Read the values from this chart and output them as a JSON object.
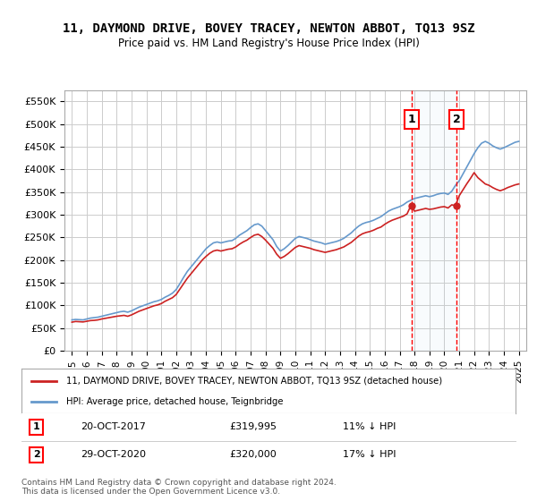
{
  "title": "11, DAYMOND DRIVE, BOVEY TRACEY, NEWTON ABBOT, TQ13 9SZ",
  "subtitle": "Price paid vs. HM Land Registry's House Price Index (HPI)",
  "yticks": [
    0,
    50000,
    100000,
    150000,
    200000,
    250000,
    300000,
    350000,
    400000,
    450000,
    500000,
    550000
  ],
  "ylim": [
    0,
    575000
  ],
  "xlim_start": 1994.5,
  "xlim_end": 2025.5,
  "background_color": "#ffffff",
  "grid_color": "#cccccc",
  "hpi_color": "#6699cc",
  "price_color": "#cc2222",
  "marker1_date": 2017.8,
  "marker1_label": "1",
  "marker1_price": 319995,
  "marker1_text": "20-OCT-2017",
  "marker1_pct": "11% ↓ HPI",
  "marker2_date": 2020.83,
  "marker2_label": "2",
  "marker2_price": 320000,
  "marker2_text": "29-OCT-2020",
  "marker2_pct": "17% ↓ HPI",
  "legend_line1": "11, DAYMOND DRIVE, BOVEY TRACEY, NEWTON ABBOT, TQ13 9SZ (detached house)",
  "legend_line2": "HPI: Average price, detached house, Teignbridge",
  "footer": "Contains HM Land Registry data © Crown copyright and database right 2024.\nThis data is licensed under the Open Government Licence v3.0.",
  "hpi_data": [
    [
      1995.0,
      68000
    ],
    [
      1995.25,
      69000
    ],
    [
      1995.5,
      68500
    ],
    [
      1995.75,
      68000
    ],
    [
      1996.0,
      70000
    ],
    [
      1996.25,
      72000
    ],
    [
      1996.5,
      73000
    ],
    [
      1996.75,
      74000
    ],
    [
      1997.0,
      76000
    ],
    [
      1997.25,
      78000
    ],
    [
      1997.5,
      80000
    ],
    [
      1997.75,
      82000
    ],
    [
      1998.0,
      84000
    ],
    [
      1998.25,
      86000
    ],
    [
      1998.5,
      87000
    ],
    [
      1998.75,
      85000
    ],
    [
      1999.0,
      88000
    ],
    [
      1999.25,
      92000
    ],
    [
      1999.5,
      96000
    ],
    [
      1999.75,
      99000
    ],
    [
      2000.0,
      102000
    ],
    [
      2000.25,
      105000
    ],
    [
      2000.5,
      108000
    ],
    [
      2000.75,
      110000
    ],
    [
      2001.0,
      113000
    ],
    [
      2001.25,
      118000
    ],
    [
      2001.5,
      122000
    ],
    [
      2001.75,
      127000
    ],
    [
      2002.0,
      135000
    ],
    [
      2002.25,
      148000
    ],
    [
      2002.5,
      162000
    ],
    [
      2002.75,
      175000
    ],
    [
      2003.0,
      185000
    ],
    [
      2003.25,
      195000
    ],
    [
      2003.5,
      205000
    ],
    [
      2003.75,
      215000
    ],
    [
      2004.0,
      225000
    ],
    [
      2004.25,
      232000
    ],
    [
      2004.5,
      238000
    ],
    [
      2004.75,
      240000
    ],
    [
      2005.0,
      238000
    ],
    [
      2005.25,
      240000
    ],
    [
      2005.5,
      242000
    ],
    [
      2005.75,
      243000
    ],
    [
      2006.0,
      248000
    ],
    [
      2006.25,
      255000
    ],
    [
      2006.5,
      260000
    ],
    [
      2006.75,
      265000
    ],
    [
      2007.0,
      272000
    ],
    [
      2007.25,
      278000
    ],
    [
      2007.5,
      280000
    ],
    [
      2007.75,
      275000
    ],
    [
      2008.0,
      265000
    ],
    [
      2008.25,
      255000
    ],
    [
      2008.5,
      245000
    ],
    [
      2008.75,
      230000
    ],
    [
      2009.0,
      220000
    ],
    [
      2009.25,
      225000
    ],
    [
      2009.5,
      232000
    ],
    [
      2009.75,
      240000
    ],
    [
      2010.0,
      248000
    ],
    [
      2010.25,
      252000
    ],
    [
      2010.5,
      250000
    ],
    [
      2010.75,
      248000
    ],
    [
      2011.0,
      245000
    ],
    [
      2011.25,
      242000
    ],
    [
      2011.5,
      240000
    ],
    [
      2011.75,
      238000
    ],
    [
      2012.0,
      235000
    ],
    [
      2012.25,
      237000
    ],
    [
      2012.5,
      239000
    ],
    [
      2012.75,
      241000
    ],
    [
      2013.0,
      244000
    ],
    [
      2013.25,
      248000
    ],
    [
      2013.5,
      254000
    ],
    [
      2013.75,
      260000
    ],
    [
      2014.0,
      268000
    ],
    [
      2014.25,
      275000
    ],
    [
      2014.5,
      280000
    ],
    [
      2014.75,
      283000
    ],
    [
      2015.0,
      285000
    ],
    [
      2015.25,
      288000
    ],
    [
      2015.5,
      292000
    ],
    [
      2015.75,
      296000
    ],
    [
      2016.0,
      302000
    ],
    [
      2016.25,
      308000
    ],
    [
      2016.5,
      312000
    ],
    [
      2016.75,
      315000
    ],
    [
      2017.0,
      318000
    ],
    [
      2017.25,
      322000
    ],
    [
      2017.5,
      328000
    ],
    [
      2017.75,
      332000
    ],
    [
      2018.0,
      336000
    ],
    [
      2018.25,
      338000
    ],
    [
      2018.5,
      340000
    ],
    [
      2018.75,
      342000
    ],
    [
      2019.0,
      340000
    ],
    [
      2019.25,
      342000
    ],
    [
      2019.5,
      345000
    ],
    [
      2019.75,
      347000
    ],
    [
      2020.0,
      348000
    ],
    [
      2020.25,
      345000
    ],
    [
      2020.5,
      352000
    ],
    [
      2020.75,
      365000
    ],
    [
      2021.0,
      375000
    ],
    [
      2021.25,
      390000
    ],
    [
      2021.5,
      405000
    ],
    [
      2021.75,
      420000
    ],
    [
      2022.0,
      435000
    ],
    [
      2022.25,
      448000
    ],
    [
      2022.5,
      458000
    ],
    [
      2022.75,
      462000
    ],
    [
      2023.0,
      458000
    ],
    [
      2023.25,
      452000
    ],
    [
      2023.5,
      448000
    ],
    [
      2023.75,
      445000
    ],
    [
      2024.0,
      448000
    ],
    [
      2024.25,
      452000
    ],
    [
      2024.5,
      456000
    ],
    [
      2024.75,
      460000
    ],
    [
      2025.0,
      462000
    ]
  ],
  "price_data": [
    [
      1995.0,
      63000
    ],
    [
      1995.25,
      64500
    ],
    [
      1995.5,
      64000
    ],
    [
      1995.75,
      63500
    ],
    [
      1996.0,
      65000
    ],
    [
      1996.25,
      66500
    ],
    [
      1996.5,
      67000
    ],
    [
      1996.75,
      68000
    ],
    [
      1997.0,
      70000
    ],
    [
      1997.25,
      71500
    ],
    [
      1997.5,
      73000
    ],
    [
      1997.75,
      74500
    ],
    [
      1998.0,
      76000
    ],
    [
      1998.25,
      77000
    ],
    [
      1998.5,
      78000
    ],
    [
      1998.75,
      76000
    ],
    [
      1999.0,
      79000
    ],
    [
      1999.25,
      83000
    ],
    [
      1999.5,
      87000
    ],
    [
      1999.75,
      90000
    ],
    [
      2000.0,
      93000
    ],
    [
      2000.25,
      96000
    ],
    [
      2000.5,
      99000
    ],
    [
      2000.75,
      101000
    ],
    [
      2001.0,
      104000
    ],
    [
      2001.25,
      109000
    ],
    [
      2001.5,
      113000
    ],
    [
      2001.75,
      117000
    ],
    [
      2002.0,
      124000
    ],
    [
      2002.25,
      136000
    ],
    [
      2002.5,
      148000
    ],
    [
      2002.75,
      160000
    ],
    [
      2003.0,
      170000
    ],
    [
      2003.25,
      180000
    ],
    [
      2003.5,
      190000
    ],
    [
      2003.75,
      200000
    ],
    [
      2004.0,
      208000
    ],
    [
      2004.25,
      215000
    ],
    [
      2004.5,
      220000
    ],
    [
      2004.75,
      222000
    ],
    [
      2005.0,
      220000
    ],
    [
      2005.25,
      222000
    ],
    [
      2005.5,
      224000
    ],
    [
      2005.75,
      225000
    ],
    [
      2006.0,
      229000
    ],
    [
      2006.25,
      235000
    ],
    [
      2006.5,
      240000
    ],
    [
      2006.75,
      244000
    ],
    [
      2007.0,
      250000
    ],
    [
      2007.25,
      255000
    ],
    [
      2007.5,
      257000
    ],
    [
      2007.75,
      252000
    ],
    [
      2008.0,
      244000
    ],
    [
      2008.25,
      235000
    ],
    [
      2008.5,
      226000
    ],
    [
      2008.75,
      213000
    ],
    [
      2009.0,
      204000
    ],
    [
      2009.25,
      208000
    ],
    [
      2009.5,
      214000
    ],
    [
      2009.75,
      221000
    ],
    [
      2010.0,
      228000
    ],
    [
      2010.25,
      232000
    ],
    [
      2010.5,
      230000
    ],
    [
      2010.75,
      228000
    ],
    [
      2011.0,
      226000
    ],
    [
      2011.25,
      223000
    ],
    [
      2011.5,
      221000
    ],
    [
      2011.75,
      219000
    ],
    [
      2012.0,
      217000
    ],
    [
      2012.25,
      219000
    ],
    [
      2012.5,
      221000
    ],
    [
      2012.75,
      223000
    ],
    [
      2013.0,
      226000
    ],
    [
      2013.25,
      229000
    ],
    [
      2013.5,
      234000
    ],
    [
      2013.75,
      239000
    ],
    [
      2014.0,
      246000
    ],
    [
      2014.25,
      253000
    ],
    [
      2014.5,
      258000
    ],
    [
      2014.75,
      261000
    ],
    [
      2015.0,
      263000
    ],
    [
      2015.25,
      266000
    ],
    [
      2015.5,
      270000
    ],
    [
      2015.75,
      273000
    ],
    [
      2016.0,
      279000
    ],
    [
      2016.25,
      284000
    ],
    [
      2016.5,
      288000
    ],
    [
      2016.75,
      291000
    ],
    [
      2017.0,
      294000
    ],
    [
      2017.25,
      297000
    ],
    [
      2017.5,
      302000
    ],
    [
      2017.75,
      319995
    ],
    [
      2018.0,
      308000
    ],
    [
      2018.25,
      310000
    ],
    [
      2018.5,
      312000
    ],
    [
      2018.75,
      314000
    ],
    [
      2019.0,
      312000
    ],
    [
      2019.25,
      313000
    ],
    [
      2019.5,
      315000
    ],
    [
      2019.75,
      317000
    ],
    [
      2020.0,
      318000
    ],
    [
      2020.25,
      315000
    ],
    [
      2020.5,
      322000
    ],
    [
      2020.75,
      320000
    ],
    [
      2021.0,
      342000
    ],
    [
      2021.25,
      355000
    ],
    [
      2021.5,
      368000
    ],
    [
      2021.75,
      380000
    ],
    [
      2022.0,
      393000
    ],
    [
      2022.25,
      382000
    ],
    [
      2022.5,
      375000
    ],
    [
      2022.75,
      368000
    ],
    [
      2023.0,
      365000
    ],
    [
      2023.25,
      360000
    ],
    [
      2023.5,
      356000
    ],
    [
      2023.75,
      353000
    ],
    [
      2024.0,
      356000
    ],
    [
      2024.25,
      360000
    ],
    [
      2024.5,
      363000
    ],
    [
      2024.75,
      366000
    ],
    [
      2025.0,
      368000
    ]
  ]
}
